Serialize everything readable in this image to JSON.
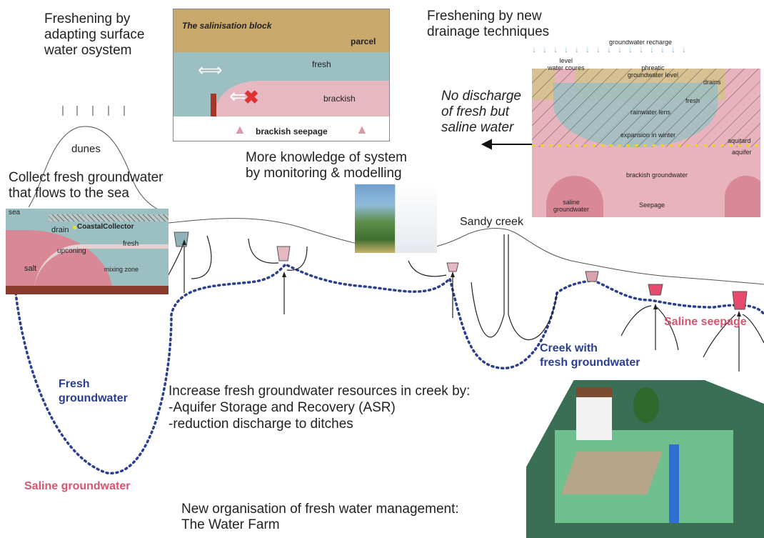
{
  "texts": {
    "freshening_surface": "Freshening by\nadapting surface\nwater osystem",
    "dunes": "dunes",
    "collect": "Collect fresh groundwater\nthat flows to the sea",
    "monitoring": "More knowledge of system\nby monitoring & modelling",
    "sandy_creek": "Sandy creek",
    "freshening_drainage": "Freshening by new\ndrainage techniques",
    "no_discharge": "No discharge\nof fresh but\nsaline water",
    "saline_seepage": "Saline seepage",
    "creek_fresh": "Creek with\nfresh groundwater",
    "fresh_groundwater": "Fresh\ngroundwater",
    "saline_groundwater": "Saline groundwater",
    "increase": "Increase fresh groundwater resources in creek by:\n-Aquifer Storage and Recovery (ASR)\n-reduction discharge to ditches",
    "new_org": "New organisation of fresh water management:\nThe Water Farm"
  },
  "salinisation_block": {
    "title": "The salinisation block",
    "parcel": "parcel",
    "fresh": "fresh",
    "brackish": "brackish",
    "seepage": "brackish seepage"
  },
  "coastal_block": {
    "sea": "sea",
    "drain": "drain",
    "collector": "CoastalCollector",
    "upconing": "upconing",
    "fresh": "fresh",
    "salt": "salt",
    "mixing": "mixing zone"
  },
  "drainage_block": {
    "recharge": "groundwater recharge",
    "level": "level\nwater coures",
    "phreatic": "phreatic\ngroundwater level",
    "drains": "drains",
    "fresh": "fresh",
    "lens": "rainwater lens",
    "winter": "expansion in winter",
    "aquitard": "aquitard",
    "aquifer": "aquifer",
    "brackish": "brackish groundwater",
    "saline": "saline\ngroundwater",
    "seepage": "Seepage"
  },
  "colors": {
    "fresh_blue": "#2a3f8f",
    "saline_pink": "#d9546f",
    "brackish_pink": "#e8b7bf",
    "fresh_water": "#9cbfc1",
    "parcel_tan": "#c9a86b"
  }
}
